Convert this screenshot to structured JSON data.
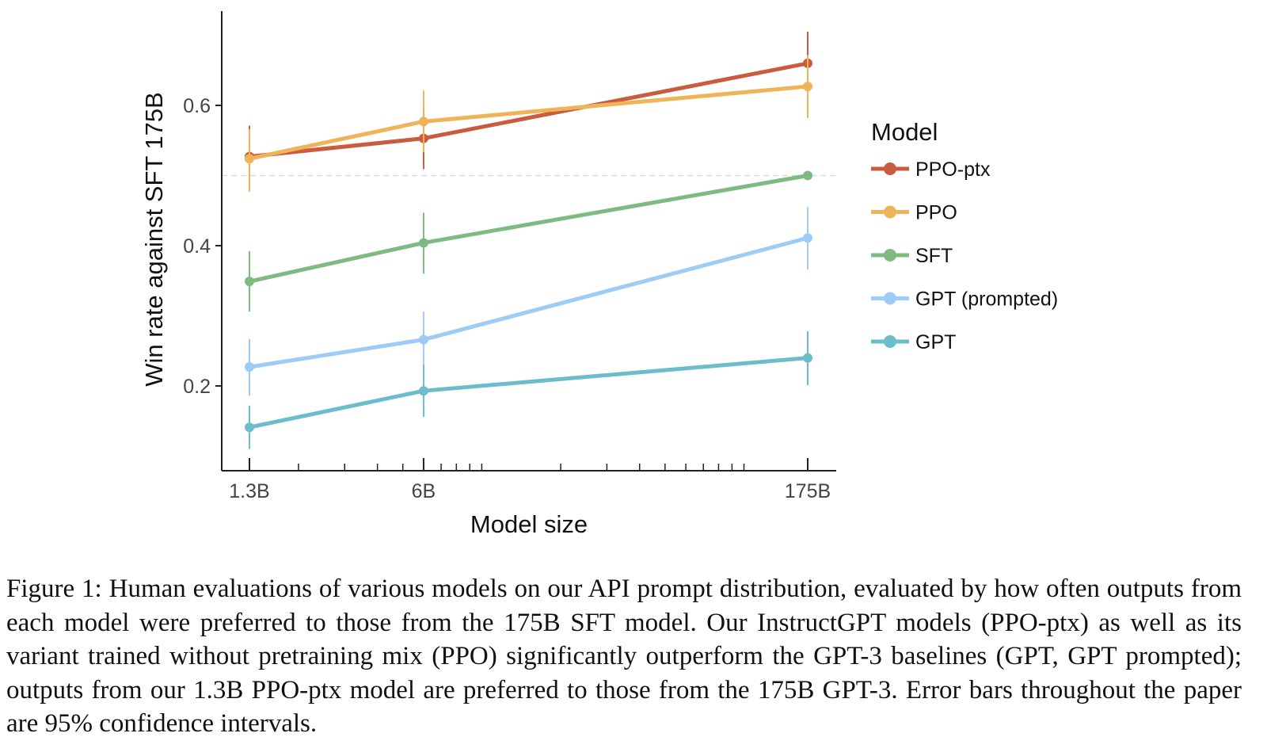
{
  "chart_data": {
    "type": "line",
    "xlabel": "Model size",
    "ylabel": "Win rate against SFT 175B",
    "x_scale": "log",
    "categories": [
      "1.3B",
      "6B",
      "175B"
    ],
    "x": [
      1.3,
      6,
      175
    ],
    "yticks": [
      "0.2",
      "0.4",
      "0.6"
    ],
    "ylim": [
      0.09,
      0.75
    ],
    "reference_line": {
      "y": 0.5,
      "style": "dashed"
    },
    "grid": false,
    "legend": {
      "title": "Model",
      "position": "right"
    },
    "error_bars": "95% confidence intervals",
    "series": [
      {
        "name": "PPO-ptx",
        "color": "#c95b3e",
        "values": [
          0.527,
          0.553,
          0.66
        ],
        "err_low": [
          0.483,
          0.509,
          0.614
        ],
        "err_high": [
          0.571,
          0.597,
          0.705
        ]
      },
      {
        "name": "PPO",
        "color": "#f1b35a",
        "values": [
          0.524,
          0.577,
          0.627
        ],
        "err_low": [
          0.477,
          0.533,
          0.582
        ],
        "err_high": [
          0.566,
          0.621,
          0.672
        ]
      },
      {
        "name": "SFT",
        "color": "#7dbb83",
        "values": [
          0.349,
          0.404,
          0.5
        ],
        "err_low": [
          0.306,
          0.36,
          0.5
        ],
        "err_high": [
          0.392,
          0.447,
          0.5
        ]
      },
      {
        "name": "GPT (prompted)",
        "color": "#9dccf7",
        "values": [
          0.227,
          0.266,
          0.411
        ],
        "err_low": [
          0.186,
          0.227,
          0.366
        ],
        "err_high": [
          0.267,
          0.306,
          0.455
        ]
      },
      {
        "name": "GPT",
        "color": "#6bbdcb",
        "values": [
          0.141,
          0.193,
          0.24
        ],
        "err_low": [
          0.11,
          0.156,
          0.201
        ],
        "err_high": [
          0.172,
          0.23,
          0.278
        ]
      }
    ]
  },
  "caption": "Figure 1: Human evaluations of various models on our API prompt distribution, evaluated by how often outputs from each model were preferred to those from the 175B SFT model. Our InstructGPT models (PPO-ptx) as well as its variant trained without pretraining mix (PPO) significantly outperform the GPT-3 baselines (GPT, GPT prompted); outputs from our 1.3B PPO-ptx model are preferred to those from the 175B GPT-3. Error bars throughout the paper are 95% confidence intervals."
}
